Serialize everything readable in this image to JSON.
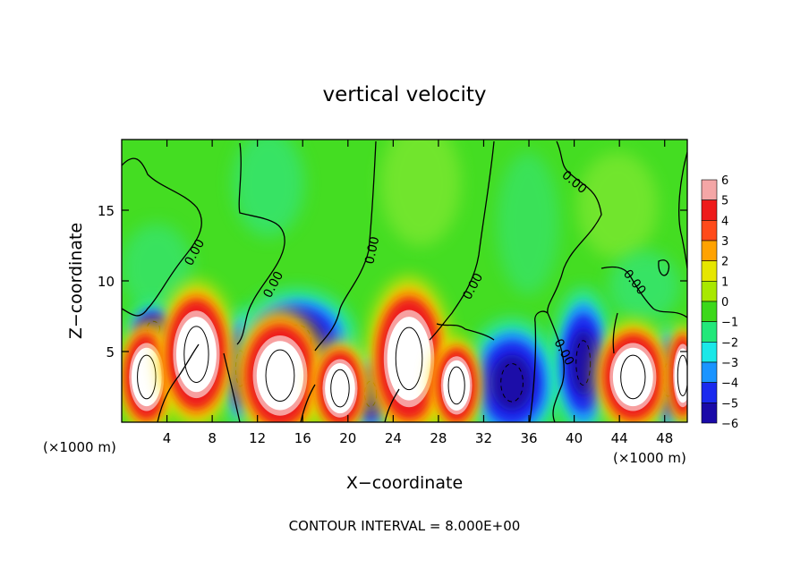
{
  "chart_data": {
    "type": "heatmap",
    "title": "vertical velocity",
    "xlabel": "X−coordinate",
    "ylabel": "Z−coordinate",
    "x_unit": "(×1000 m)",
    "x_unit_right": "(×1000 m)",
    "footer": "CONTOUR INTERVAL = 8.000E+00",
    "xlim": [
      0,
      50
    ],
    "ylim": [
      0,
      20
    ],
    "xticks": [
      4,
      8,
      12,
      16,
      20,
      24,
      28,
      32,
      36,
      40,
      44,
      48
    ],
    "xtick_labels": [
      "4",
      "8",
      "12",
      "16",
      "20",
      "24",
      "28",
      "32",
      "36",
      "40",
      "44",
      "48"
    ],
    "yticks": [
      5,
      10,
      15
    ],
    "ytick_labels": [
      "5",
      "10",
      "15"
    ],
    "contour_label": "0.00",
    "colorbar": {
      "levels": [
        6,
        5,
        4,
        3,
        2,
        1,
        0,
        -1,
        -2,
        -3,
        -4,
        -5,
        -6
      ],
      "labels": [
        "6",
        "5",
        "4",
        "3",
        "2",
        "1",
        "0",
        "−1",
        "−2",
        "−3",
        "−4",
        "−5",
        "−6"
      ],
      "colors": [
        "#f4a6a6",
        "#ee1a1a",
        "#ff4a1a",
        "#ffa200",
        "#e6e600",
        "#a8e800",
        "#3cd81a",
        "#22e87a",
        "#1ae8e8",
        "#1a94ff",
        "#1a2aee",
        "#1a0aa8",
        "#6a0aa8"
      ]
    },
    "background_color": "#44dd22",
    "features": [
      {
        "kind": "updraft",
        "x": 2.2,
        "z": 3.2,
        "rx": 1.8,
        "rz": 2.8,
        "value": 8
      },
      {
        "kind": "downdraft",
        "x": 2.8,
        "z": 6.6,
        "rx": 1.6,
        "rz": 1.2,
        "value": -4
      },
      {
        "kind": "updraft",
        "x": 6.6,
        "z": 4.8,
        "rx": 2.4,
        "rz": 3.6,
        "value": 8
      },
      {
        "kind": "downdraft",
        "x": 10.5,
        "z": 3.8,
        "rx": 1.2,
        "rz": 2.8,
        "value": -5
      },
      {
        "kind": "updraft",
        "x": 14.0,
        "z": 3.3,
        "rx": 2.8,
        "rz": 3.3,
        "value": 8
      },
      {
        "kind": "downdraft",
        "x": 15.5,
        "z": 5.8,
        "rx": 3.5,
        "rz": 2.4,
        "value": -5
      },
      {
        "kind": "updraft",
        "x": 19.3,
        "z": 2.4,
        "rx": 1.8,
        "rz": 2.4,
        "value": 8
      },
      {
        "kind": "updraft",
        "x": 25.4,
        "z": 4.5,
        "rx": 2.6,
        "rz": 4.0,
        "value": 8
      },
      {
        "kind": "downdraft",
        "x": 22.0,
        "z": 2.0,
        "rx": 1.5,
        "rz": 2.0,
        "value": -4
      },
      {
        "kind": "updraft",
        "x": 29.6,
        "z": 2.6,
        "rx": 1.6,
        "rz": 2.4,
        "value": 8
      },
      {
        "kind": "downdraft",
        "x": 34.5,
        "z": 2.8,
        "rx": 2.8,
        "rz": 3.0,
        "value": -5
      },
      {
        "kind": "downdraft",
        "x": 40.8,
        "z": 4.2,
        "rx": 1.8,
        "rz": 3.5,
        "value": -4
      },
      {
        "kind": "updraft",
        "x": 45.2,
        "z": 3.2,
        "rx": 2.4,
        "rz": 2.8,
        "value": 8
      },
      {
        "kind": "downdraft",
        "x": 48.3,
        "z": 3.0,
        "rx": 1.2,
        "rz": 2.6,
        "value": -5
      },
      {
        "kind": "updraft",
        "x": 49.6,
        "z": 3.3,
        "rx": 1.0,
        "rz": 2.6,
        "value": 8
      }
    ]
  }
}
